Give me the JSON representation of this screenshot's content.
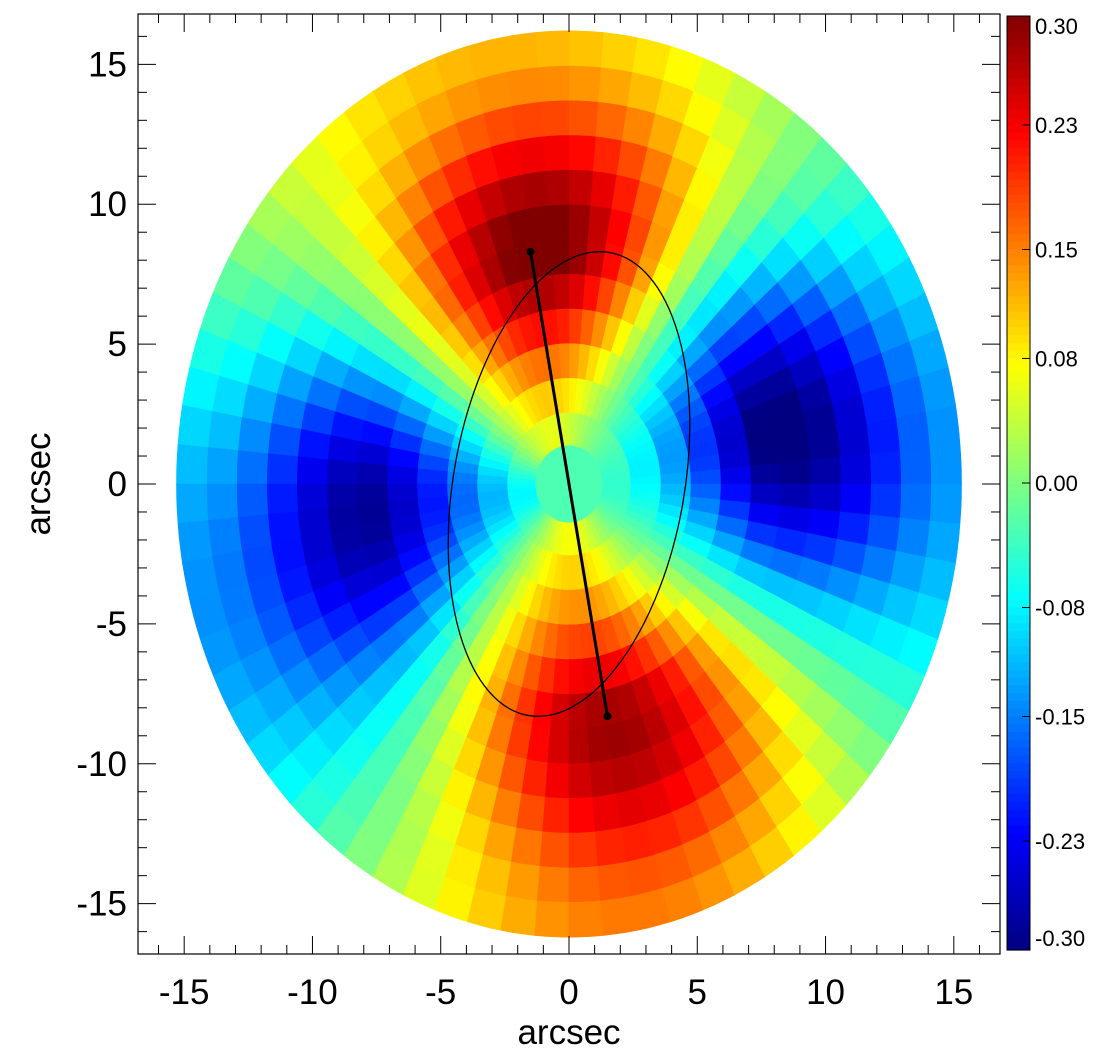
{
  "chart_data": {
    "type": "heatmap",
    "subtype": "polar-binned velocity map",
    "title": "",
    "xlabel": "arcsec",
    "ylabel": "arcsec",
    "xlim": [
      -16.8,
      16.8
    ],
    "ylim": [
      -16.8,
      16.8
    ],
    "xticks": [
      -15,
      -10,
      -5,
      0,
      5,
      10,
      15
    ],
    "yticks": [
      15,
      10,
      5,
      0,
      -5,
      -10,
      -15
    ],
    "xtick_labels": [
      "-15",
      "-10",
      "-5",
      "0",
      "5",
      "10",
      "15"
    ],
    "ytick_labels": [
      "15",
      "10",
      "5",
      "0",
      "-5",
      "-10",
      "-15"
    ],
    "map": {
      "outer_semi_axis_x": 15.3,
      "outer_semi_axis_y": 16.2,
      "inner_radius": 1.3,
      "ring_count": 12,
      "sector_count": 72,
      "pattern": "quadrupole, red lobes along PA ~10 deg",
      "peak_value": 0.3
    },
    "ellipse": {
      "center": [
        0,
        0
      ],
      "semi_major": 8.4,
      "semi_minor": 4.5,
      "position_angle_deg": 10
    },
    "major_axis_line": {
      "start": [
        -1.5,
        8.3
      ],
      "end": [
        1.5,
        -8.3
      ]
    },
    "colorbar": {
      "colormap": "jet",
      "range": [
        -0.3,
        0.3
      ],
      "ticks": [
        0.3,
        0.23,
        0.15,
        0.08,
        0.0,
        -0.08,
        -0.15,
        -0.23,
        -0.3
      ],
      "tick_labels": [
        "0.30",
        "0.23",
        "0.15",
        "0.08",
        "0.00",
        "-0.08",
        "-0.15",
        "-0.23",
        "-0.30"
      ]
    },
    "grid": false,
    "legend": "none"
  }
}
